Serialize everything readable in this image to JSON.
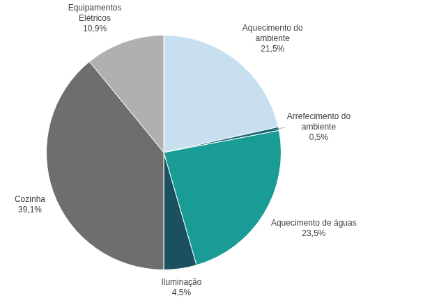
{
  "chart_data": {
    "type": "pie",
    "categories": [
      "Aquecimento do\nambiente",
      "Arrefecimento do\nambiente",
      "Aquecimento de águas",
      "Iluminação",
      "Cozinha",
      "Equipamentos\nElétricos"
    ],
    "values": [
      21.5,
      0.5,
      23.5,
      4.5,
      39.1,
      10.9
    ],
    "value_labels": [
      "21,5%",
      "0,5%",
      "23,5%",
      "4,5%",
      "39,1%",
      "10,9%"
    ],
    "colors": [
      "#c8dff0",
      "#1a6b72",
      "#1a9c96",
      "#1a5060",
      "#6e6e6e",
      "#b0b0b0"
    ],
    "data_labels": true
  }
}
